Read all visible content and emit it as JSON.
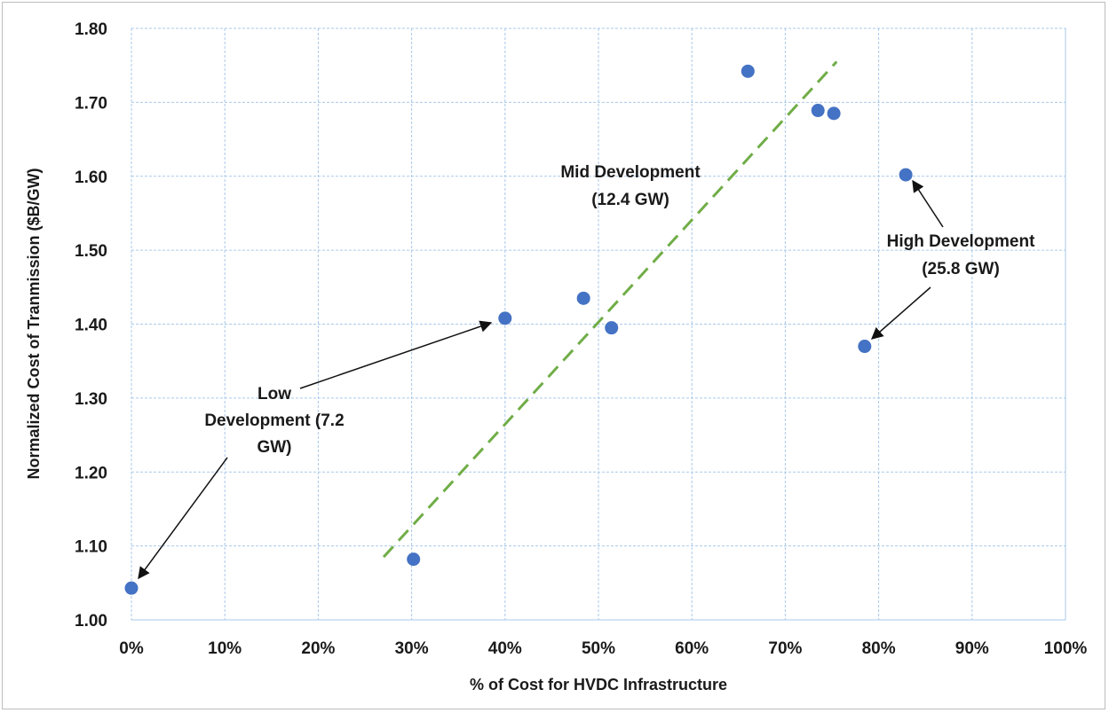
{
  "chart_data": {
    "type": "scatter",
    "title": "",
    "xlabel": "% of Cost for HVDC Infrastructure",
    "ylabel": "Normalized Cost of Tranmission ($B/GW)",
    "xlim": [
      0,
      100
    ],
    "ylim": [
      1.0,
      1.8
    ],
    "x_ticks": [
      "0%",
      "10%",
      "20%",
      "30%",
      "40%",
      "50%",
      "60%",
      "70%",
      "80%",
      "90%",
      "100%"
    ],
    "y_ticks": [
      "1.00",
      "1.10",
      "1.20",
      "1.30",
      "1.40",
      "1.50",
      "1.60",
      "1.70",
      "1.80"
    ],
    "grid": true,
    "legend": "none",
    "colors": {
      "points": "#4472c4",
      "trendline": "#70ad47",
      "grid": "#a9c9ea"
    },
    "points": [
      {
        "x": 0.0,
        "y": 1.043
      },
      {
        "x": 30.2,
        "y": 1.082
      },
      {
        "x": 40.0,
        "y": 1.408
      },
      {
        "x": 48.4,
        "y": 1.435
      },
      {
        "x": 51.4,
        "y": 1.395
      },
      {
        "x": 66.0,
        "y": 1.742
      },
      {
        "x": 73.5,
        "y": 1.689
      },
      {
        "x": 75.2,
        "y": 1.685
      },
      {
        "x": 78.5,
        "y": 1.37
      },
      {
        "x": 82.9,
        "y": 1.602
      }
    ],
    "trendline": {
      "style": "dashed",
      "from": {
        "x": 27.0,
        "y": 1.085
      },
      "to": {
        "x": 75.5,
        "y": 1.755
      }
    },
    "annotations": [
      {
        "id": "low",
        "lines": [
          "Low",
          "Development (7.2",
          "GW)"
        ]
      },
      {
        "id": "mid",
        "lines": [
          "Mid Development",
          "(12.4 GW)"
        ]
      },
      {
        "id": "high",
        "lines": [
          "High Development",
          "(25.8 GW)"
        ]
      }
    ]
  }
}
